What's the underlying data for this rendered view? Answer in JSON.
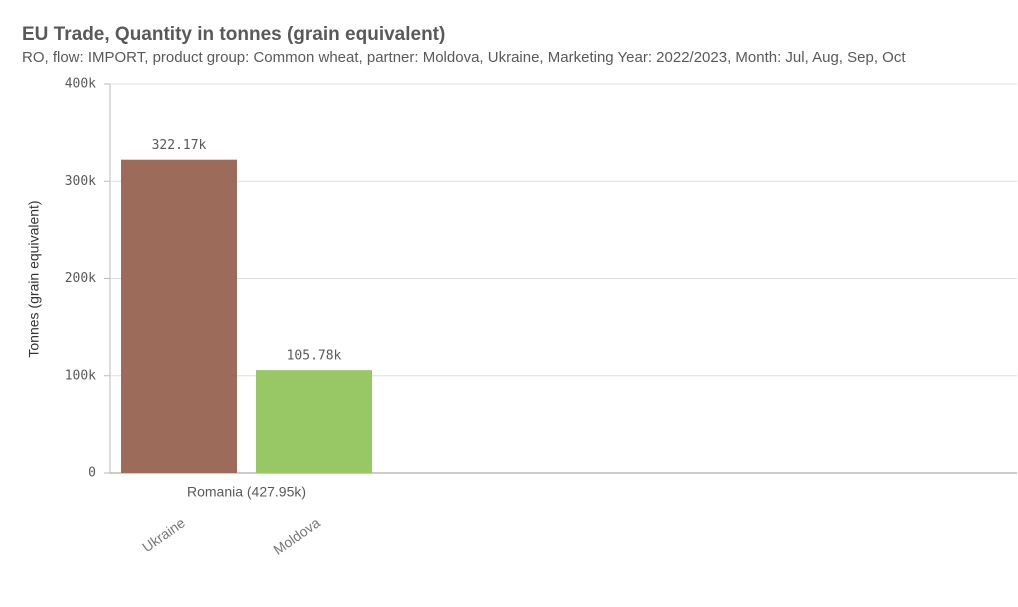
{
  "chart_data": {
    "type": "bar",
    "title": "EU Trade, Quantity in tonnes (grain equivalent)",
    "subtitle": "RO, flow: IMPORT, product group: Common wheat, partner: Moldova, Ukraine, Marketing Year: 2022/2023, Month: Jul, Aug, Sep, Oct",
    "y_label": "Tonnes (grain equivalent)",
    "categories": [
      "Romania (427.95k)"
    ],
    "series": [
      {
        "name": "Ukraine",
        "color": "#9c6b5a",
        "values": [
          322170
        ],
        "value_labels": [
          "322.17k"
        ]
      },
      {
        "name": "Moldova",
        "color": "#98c865",
        "values": [
          105780
        ],
        "value_labels": [
          "105.78k"
        ]
      }
    ],
    "ylim": [
      0,
      400000
    ],
    "yticks": [
      0,
      {
        "value": 100000,
        "label": "100k"
      },
      {
        "value": 200000,
        "label": "200k"
      },
      {
        "value": 300000,
        "label": "300k"
      },
      {
        "value": 400000,
        "label": "400k"
      }
    ],
    "grid": true
  }
}
